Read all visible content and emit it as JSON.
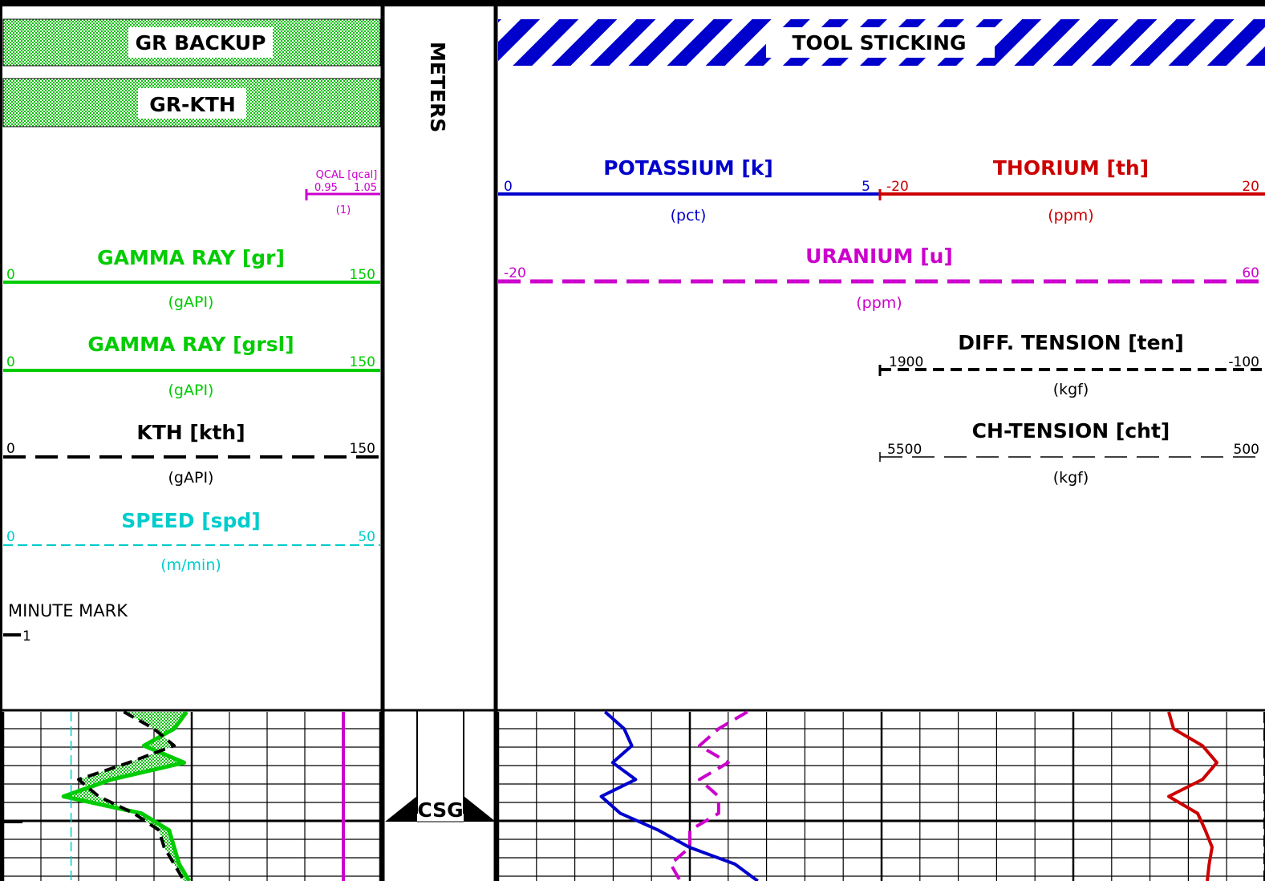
{
  "headers": {
    "gr_backup": "GR BACKUP",
    "gr_kth": "GR-KTH",
    "tool_sticking": "TOOL STICKING",
    "depth_unit": "METERS",
    "casing": "CSG"
  },
  "track1": {
    "qcal": {
      "name": "QCAL",
      "mnemonic": "[qcal]",
      "left": "0.95",
      "right": "1.05",
      "unit": "(1)"
    },
    "gr": {
      "name": "GAMMA RAY",
      "mnemonic": "[gr]",
      "left": "0",
      "right": "150",
      "unit": "(gAPI)"
    },
    "grsl": {
      "name": "GAMMA RAY",
      "mnemonic": "[grsl]",
      "left": "0",
      "right": "150",
      "unit": "(gAPI)"
    },
    "kth": {
      "name": "KTH",
      "mnemonic": "[kth]",
      "left": "0",
      "right": "150",
      "unit": "(gAPI)"
    },
    "spd": {
      "name": "SPEED",
      "mnemonic": "[spd]",
      "left": "0",
      "right": "50",
      "unit": "(m/min)"
    },
    "minute_mark": {
      "name": "MINUTE MARK",
      "value": "1"
    }
  },
  "track2": {
    "k": {
      "name": "POTASSIUM",
      "mnemonic": "[k]",
      "left": "0",
      "right": "5",
      "unit": "(pct)"
    },
    "th": {
      "name": "THORIUM",
      "mnemonic": "[th]",
      "left": "-20",
      "right": "20",
      "unit": "(ppm)"
    },
    "u": {
      "name": "URANIUM",
      "mnemonic": "[u]",
      "left": "-20",
      "right": "60",
      "unit": "(ppm)"
    },
    "ten": {
      "name": "DIFF. TENSION",
      "mnemonic": "[ten]",
      "left": "1900",
      "right": "-100",
      "unit": "(kgf)"
    },
    "cht": {
      "name": "CH-TENSION",
      "mnemonic": "[cht]",
      "left": "5500",
      "right": "500",
      "unit": "(kgf)"
    }
  },
  "colors": {
    "gr": "#00cc00",
    "qcal": "#cc00cc",
    "spd": "#00cccc",
    "k": "#0000cc",
    "th": "#cc0000",
    "u": "#cc00cc",
    "black": "#000000"
  },
  "chart_data": {
    "type": "line",
    "y": [
      0,
      0.1,
      0.2,
      0.3,
      0.4,
      0.5,
      0.6,
      0.7,
      0.8,
      0.9,
      1.0
    ],
    "series": [
      {
        "name": "GAMMA RAY",
        "x": [
          73,
          68,
          56,
          72,
          43,
          24,
          55,
          66,
          68,
          70,
          74
        ]
      },
      {
        "name": "KTH",
        "x": [
          48,
          60,
          68,
          50,
          30,
          38,
          52,
          62,
          64,
          68,
          72
        ]
      },
      {
        "name": "SPEED",
        "x": [
          9,
          9,
          9,
          9,
          9,
          9,
          9,
          9,
          9,
          9,
          9
        ]
      },
      {
        "name": "QCAL",
        "x": [
          1.0,
          1.0,
          1.0,
          1.0,
          1.0,
          1.0,
          1.0,
          1.0,
          1.0,
          1.0,
          1.0
        ]
      },
      {
        "name": "POTASSIUM",
        "x": [
          1.4,
          1.65,
          1.75,
          1.5,
          1.8,
          1.35,
          1.6,
          2.1,
          2.5,
          3.1,
          3.4
        ]
      },
      {
        "name": "URANIUM",
        "x": [
          6,
          3,
          1,
          4,
          1,
          3,
          3,
          0,
          0,
          -2,
          -1
        ]
      },
      {
        "name": "THORIUM",
        "x": [
          10,
          10.5,
          13.5,
          15,
          13.5,
          10,
          13,
          13.8,
          14.5,
          14.2,
          14
        ]
      },
      {
        "name": "DIFF. TENSION",
        "x": [
          -100,
          -100,
          -100,
          -100,
          -100,
          -100,
          -100,
          -100,
          -100,
          -100,
          -100
        ]
      },
      {
        "name": "CH-TENSION",
        "x": [
          500,
          500,
          500,
          500,
          500,
          500,
          500,
          500,
          500,
          500,
          500
        ]
      }
    ]
  }
}
